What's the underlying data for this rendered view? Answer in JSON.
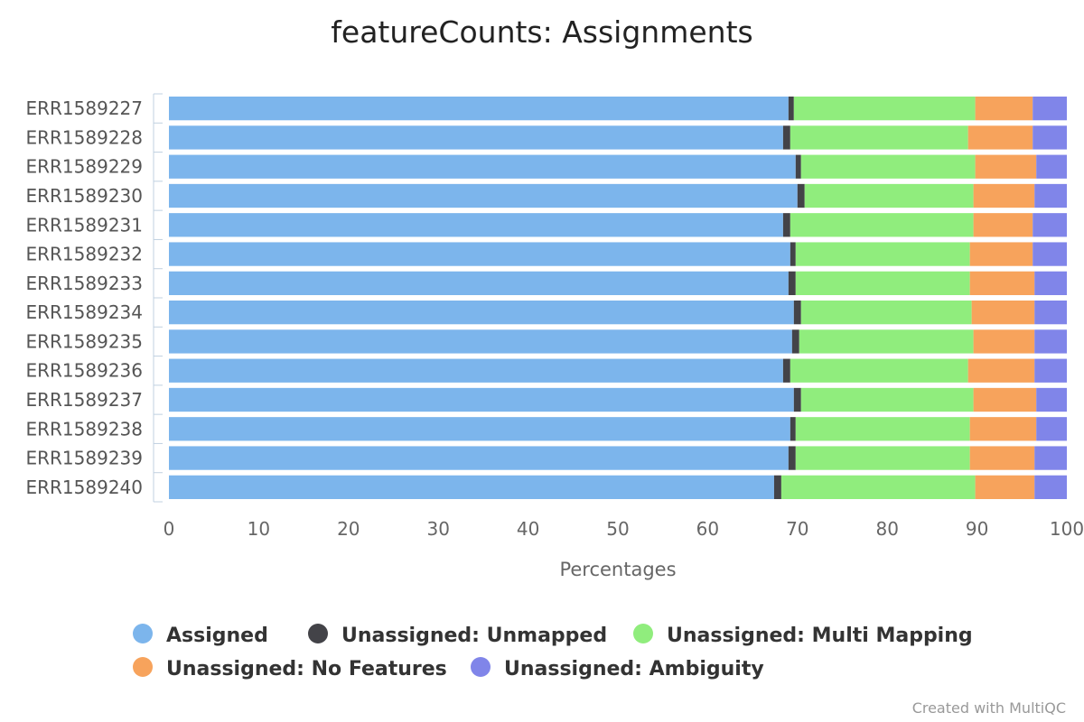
{
  "chart_data": {
    "type": "bar",
    "orientation": "horizontal",
    "stacked": true,
    "title": "featureCounts: Assignments",
    "xlabel": "Percentages",
    "ylabel": "",
    "xlim": [
      0,
      100
    ],
    "xticks": [
      0,
      10,
      20,
      30,
      40,
      50,
      60,
      70,
      80,
      90,
      100
    ],
    "grid": false,
    "legend_position": "bottom",
    "categories": [
      "ERR1589227",
      "ERR1589228",
      "ERR1589229",
      "ERR1589230",
      "ERR1589231",
      "ERR1589232",
      "ERR1589233",
      "ERR1589234",
      "ERR1589235",
      "ERR1589236",
      "ERR1589237",
      "ERR1589238",
      "ERR1589239",
      "ERR1589240"
    ],
    "series": [
      {
        "name": "Assigned",
        "color": "#7cb5ec",
        "values": [
          69.0,
          68.4,
          69.8,
          70.0,
          68.4,
          69.2,
          69.0,
          69.6,
          69.4,
          68.4,
          69.6,
          69.2,
          69.0,
          67.4
        ]
      },
      {
        "name": "Unassigned: Unmapped",
        "color": "#434348",
        "values": [
          0.6,
          0.8,
          0.6,
          0.8,
          0.8,
          0.6,
          0.8,
          0.8,
          0.8,
          0.8,
          0.8,
          0.6,
          0.8,
          0.8
        ]
      },
      {
        "name": "Unassigned: Multi Mapping",
        "color": "#90ed7d",
        "values": [
          20.2,
          19.8,
          19.4,
          18.8,
          20.4,
          19.4,
          19.4,
          19.0,
          19.4,
          19.8,
          19.2,
          19.4,
          19.4,
          21.6
        ]
      },
      {
        "name": "Unassigned: No Features",
        "color": "#f7a35c",
        "values": [
          6.4,
          7.2,
          6.8,
          6.8,
          6.6,
          7.0,
          7.2,
          7.0,
          6.8,
          7.4,
          7.0,
          7.4,
          7.2,
          6.6
        ]
      },
      {
        "name": "Unassigned: Ambiguity",
        "color": "#8085e9",
        "values": [
          3.8,
          3.8,
          3.4,
          3.6,
          3.8,
          3.8,
          3.6,
          3.6,
          3.6,
          3.6,
          3.4,
          3.4,
          3.6,
          3.6
        ]
      }
    ]
  },
  "credit": "Created with MultiQC"
}
